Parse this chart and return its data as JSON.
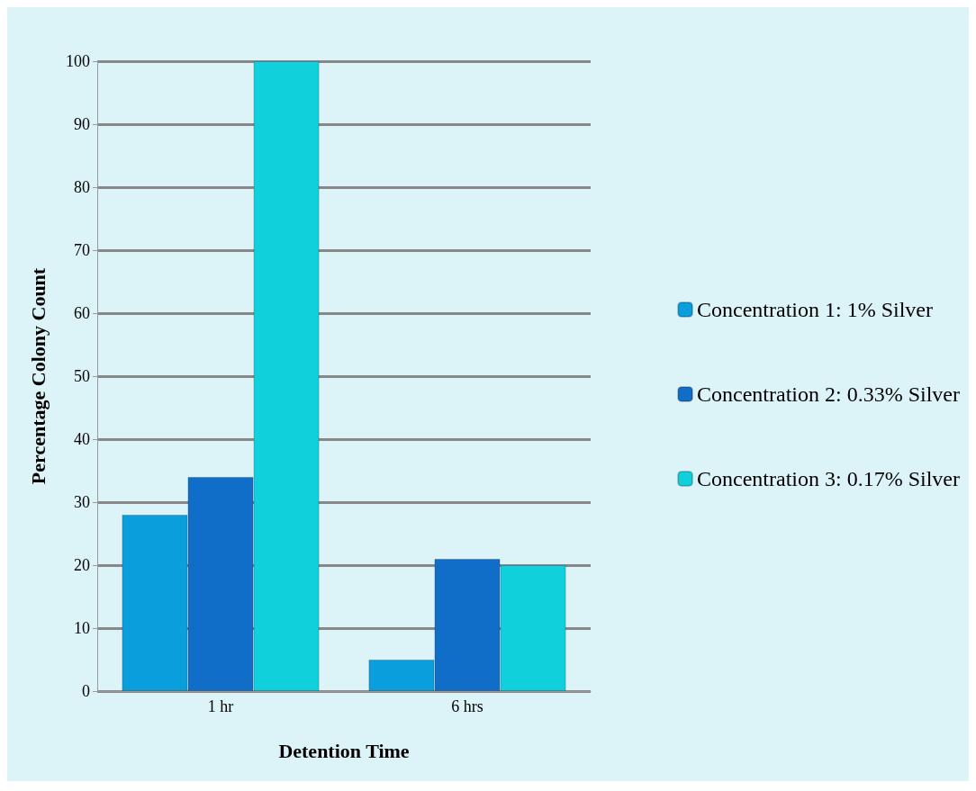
{
  "chart_data": {
    "type": "bar",
    "xlabel": "Detention Time",
    "ylabel": "Percentage Colony Count",
    "categories": [
      "1 hr",
      "6 hrs"
    ],
    "series": [
      {
        "name": "Concentration 1: 1% Silver",
        "color": "#0a9edc",
        "values": [
          28,
          5
        ]
      },
      {
        "name": "Concentration 2: 0.33% Silver",
        "color": "#106ec8",
        "values": [
          34,
          21
        ]
      },
      {
        "name": "Concentration 3: 0.17% Silver",
        "color": "#10d0dc",
        "values": [
          100,
          20
        ]
      }
    ],
    "ylim": [
      0,
      100
    ],
    "yticks": [
      0,
      10,
      20,
      30,
      40,
      50,
      60,
      70,
      80,
      90,
      100
    ],
    "grid": true,
    "legend": "right"
  }
}
